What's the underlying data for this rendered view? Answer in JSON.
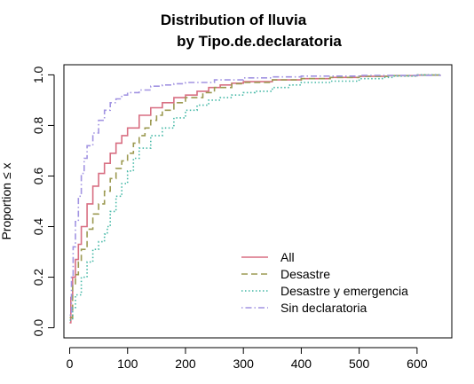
{
  "chart_data": {
    "type": "line",
    "title_line1": "Distribution of lluvia",
    "title_line2": "by Tipo.de.declaratoria",
    "xlabel": "",
    "ylabel": "Proportion ≤ x",
    "xlim": [
      -10,
      660
    ],
    "ylim": [
      -0.04,
      1.04
    ],
    "x_ticks": [
      0,
      100,
      200,
      300,
      400,
      500,
      600
    ],
    "x_tick_labels": [
      "0",
      "100",
      "200",
      "300",
      "400",
      "500",
      "600"
    ],
    "y_ticks": [
      0.0,
      0.2,
      0.4,
      0.6,
      0.8,
      1.0
    ],
    "y_tick_labels": [
      "0.0",
      "0.2",
      "0.4",
      "0.6",
      "0.8",
      "1.0"
    ],
    "legend_position": "bottom-right",
    "series": [
      {
        "name": "All",
        "color": "#d86f82",
        "dash": "solid",
        "points": [
          [
            0,
            0.02
          ],
          [
            2,
            0.12
          ],
          [
            5,
            0.2
          ],
          [
            10,
            0.27
          ],
          [
            15,
            0.33
          ],
          [
            20,
            0.4
          ],
          [
            30,
            0.49
          ],
          [
            40,
            0.56
          ],
          [
            50,
            0.61
          ],
          [
            60,
            0.65
          ],
          [
            70,
            0.69
          ],
          [
            80,
            0.73
          ],
          [
            90,
            0.76
          ],
          [
            100,
            0.79
          ],
          [
            120,
            0.84
          ],
          [
            140,
            0.87
          ],
          [
            160,
            0.89
          ],
          [
            180,
            0.91
          ],
          [
            200,
            0.92
          ],
          [
            220,
            0.935
          ],
          [
            240,
            0.95
          ],
          [
            260,
            0.96
          ],
          [
            280,
            0.967
          ],
          [
            300,
            0.973
          ],
          [
            350,
            0.98
          ],
          [
            400,
            0.985
          ],
          [
            450,
            0.99
          ],
          [
            500,
            0.994
          ],
          [
            550,
            0.997
          ],
          [
            600,
            0.999
          ],
          [
            640,
            1.0
          ]
        ]
      },
      {
        "name": "Desastre",
        "color": "#9c9a52",
        "dash": "dashed",
        "points": [
          [
            0,
            0.04
          ],
          [
            5,
            0.17
          ],
          [
            10,
            0.21
          ],
          [
            15,
            0.26
          ],
          [
            20,
            0.31
          ],
          [
            30,
            0.39
          ],
          [
            40,
            0.45
          ],
          [
            50,
            0.49
          ],
          [
            60,
            0.54
          ],
          [
            70,
            0.59
          ],
          [
            80,
            0.63
          ],
          [
            90,
            0.66
          ],
          [
            100,
            0.69
          ],
          [
            110,
            0.73
          ],
          [
            120,
            0.76
          ],
          [
            130,
            0.79
          ],
          [
            140,
            0.82
          ],
          [
            150,
            0.84
          ],
          [
            160,
            0.86
          ],
          [
            180,
            0.89
          ],
          [
            200,
            0.91
          ],
          [
            230,
            0.93
          ],
          [
            250,
            0.95
          ],
          [
            280,
            0.965
          ],
          [
            300,
            0.97
          ],
          [
            350,
            0.98
          ],
          [
            400,
            0.985
          ],
          [
            450,
            0.99
          ],
          [
            500,
            0.994
          ],
          [
            550,
            0.997
          ],
          [
            600,
            0.999
          ],
          [
            640,
            1.0
          ]
        ]
      },
      {
        "name": "Desastre y emergencia",
        "color": "#44b8a6",
        "dash": "dotted",
        "points": [
          [
            0,
            0.03
          ],
          [
            5,
            0.08
          ],
          [
            10,
            0.13
          ],
          [
            20,
            0.2
          ],
          [
            30,
            0.26
          ],
          [
            40,
            0.31
          ],
          [
            50,
            0.34
          ],
          [
            60,
            0.37
          ],
          [
            65,
            0.4
          ],
          [
            70,
            0.46
          ],
          [
            80,
            0.52
          ],
          [
            90,
            0.57
          ],
          [
            100,
            0.62
          ],
          [
            110,
            0.67
          ],
          [
            120,
            0.71
          ],
          [
            140,
            0.76
          ],
          [
            160,
            0.79
          ],
          [
            180,
            0.83
          ],
          [
            200,
            0.86
          ],
          [
            220,
            0.88
          ],
          [
            240,
            0.9
          ],
          [
            260,
            0.91
          ],
          [
            280,
            0.92
          ],
          [
            300,
            0.93
          ],
          [
            320,
            0.935
          ],
          [
            350,
            0.95
          ],
          [
            380,
            0.96
          ],
          [
            400,
            0.97
          ],
          [
            450,
            0.975
          ],
          [
            500,
            0.985
          ],
          [
            540,
            0.99
          ],
          [
            560,
            0.995
          ],
          [
            600,
            1.0
          ],
          [
            640,
            1.0
          ]
        ]
      },
      {
        "name": "Sin declaratoria",
        "color": "#a294e2",
        "dash": "dotdash",
        "points": [
          [
            0,
            0.05
          ],
          [
            3,
            0.2
          ],
          [
            6,
            0.32
          ],
          [
            10,
            0.42
          ],
          [
            15,
            0.52
          ],
          [
            20,
            0.61
          ],
          [
            25,
            0.67
          ],
          [
            30,
            0.72
          ],
          [
            40,
            0.77
          ],
          [
            50,
            0.82
          ],
          [
            60,
            0.86
          ],
          [
            70,
            0.89
          ],
          [
            80,
            0.905
          ],
          [
            90,
            0.92
          ],
          [
            100,
            0.93
          ],
          [
            120,
            0.94
          ],
          [
            140,
            0.955
          ],
          [
            160,
            0.96
          ],
          [
            180,
            0.965
          ],
          [
            200,
            0.97
          ],
          [
            250,
            0.98
          ],
          [
            300,
            0.988
          ],
          [
            350,
            0.992
          ],
          [
            400,
            0.995
          ],
          [
            500,
            0.998
          ],
          [
            640,
            1.0
          ]
        ]
      }
    ]
  }
}
